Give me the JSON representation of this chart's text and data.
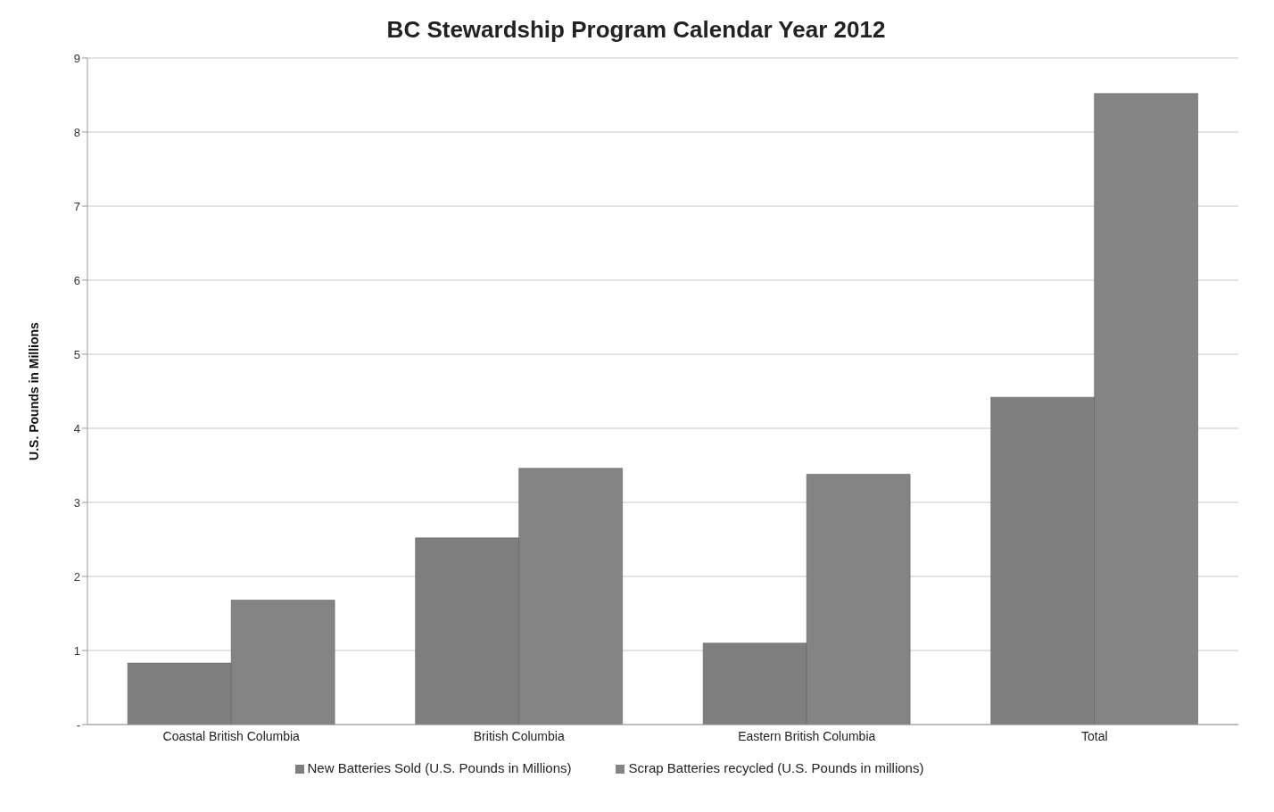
{
  "chart_data": {
    "type": "bar",
    "title": "BC Stewardship Program Calendar Year 2012",
    "ylabel": "U.S. Pounds in Millions",
    "categories": [
      "Coastal British Columbia",
      "British Columbia",
      "Eastern British Columbia",
      "Total"
    ],
    "series": [
      {
        "name": "New Batteries Sold (U.S. Pounds in Millions)",
        "color": "#7f7f7f",
        "values": [
          0.83,
          2.52,
          1.1,
          4.42
        ]
      },
      {
        "name": "Scrap Batteries recycled (U.S. Pounds in millions)",
        "color": "#848484",
        "values": [
          1.68,
          3.46,
          3.38,
          8.52
        ]
      }
    ],
    "ylim": [
      0,
      9
    ],
    "yticks": [
      {
        "value": 0,
        "label": "-"
      },
      1,
      2,
      3,
      4,
      5,
      6,
      7,
      8,
      9
    ],
    "grid": "y",
    "legend": "bottom"
  }
}
